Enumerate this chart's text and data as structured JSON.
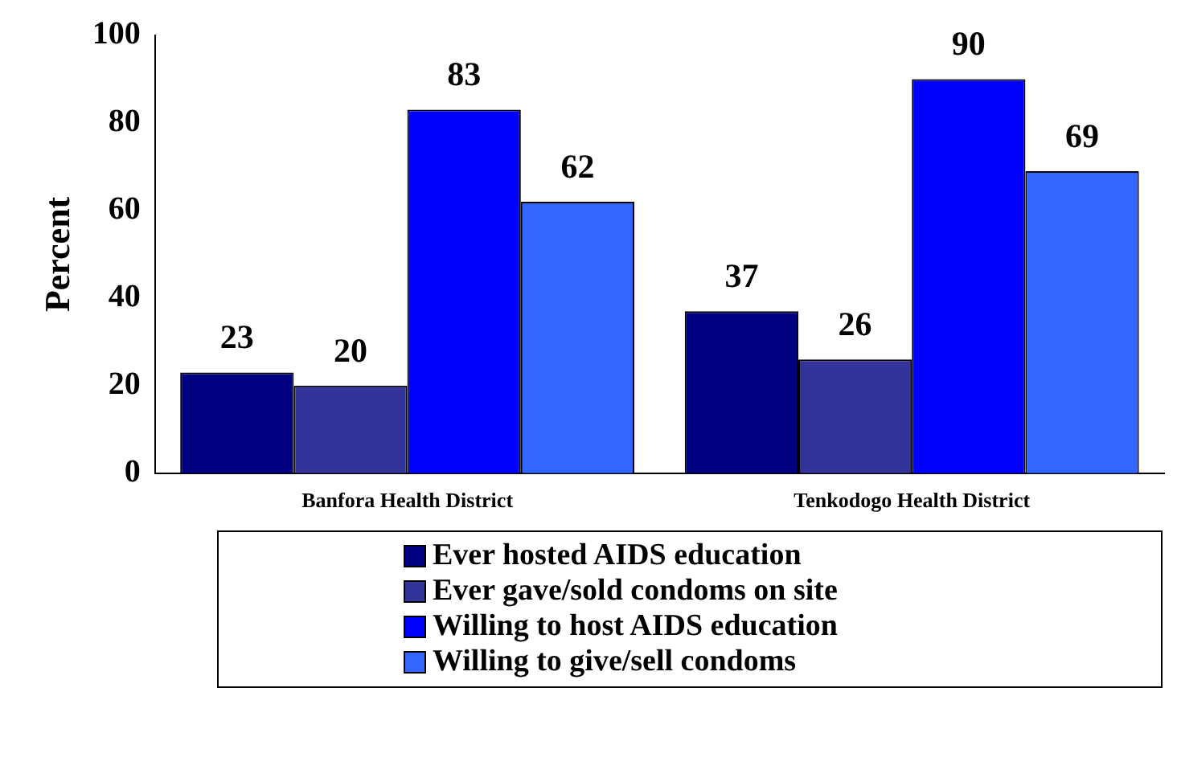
{
  "chart_data": {
    "type": "bar",
    "ylabel": "Percent",
    "categories": [
      "Banfora Health District",
      "Tenkodogo Health District"
    ],
    "series": [
      {
        "name": "Ever hosted AIDS education",
        "color": "#000080",
        "values": [
          23,
          37
        ]
      },
      {
        "name": "Ever gave/sold condoms on site",
        "color": "#333399",
        "values": [
          20,
          26
        ]
      },
      {
        "name": "Willing to host AIDS education",
        "color": "#0000ff",
        "values": [
          83,
          90
        ]
      },
      {
        "name": "Willing to give/sell condoms",
        "color": "#3366ff",
        "values": [
          62,
          69
        ]
      }
    ],
    "ylim": [
      0,
      100
    ],
    "yticks": [
      0,
      20,
      40,
      60,
      80,
      100
    ],
    "grid": false,
    "legend": "bottom",
    "data_labels": true
  }
}
